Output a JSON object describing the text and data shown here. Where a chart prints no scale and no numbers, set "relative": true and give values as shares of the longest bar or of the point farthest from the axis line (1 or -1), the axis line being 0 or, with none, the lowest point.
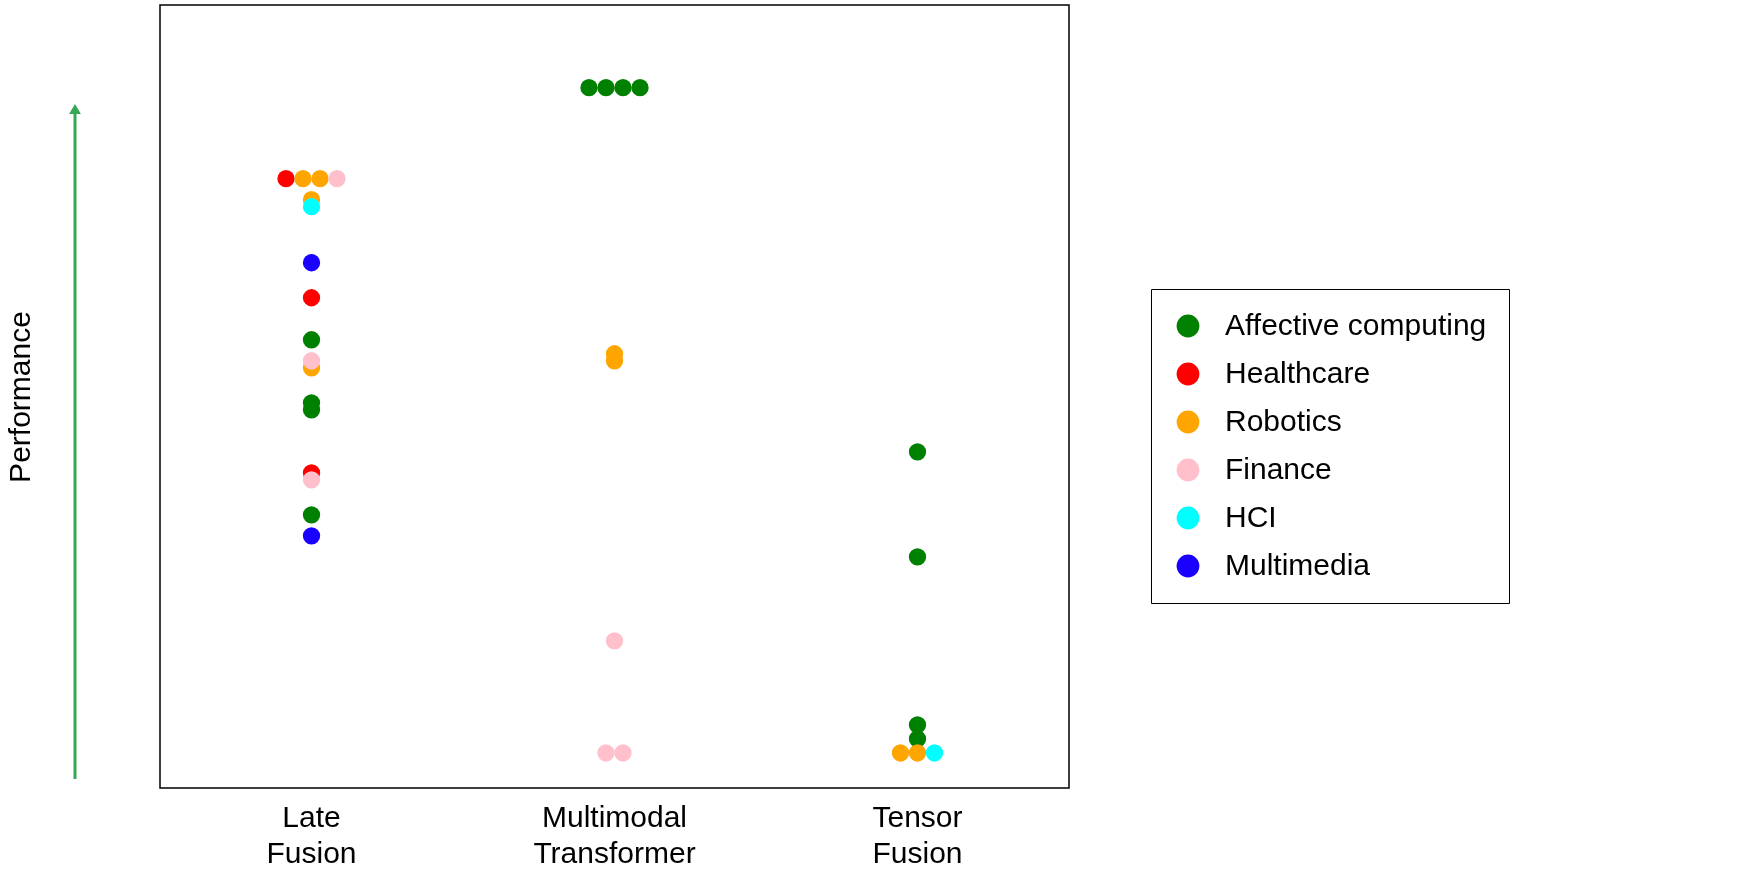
{
  "chart_data": {
    "type": "scatter",
    "ylabel": "Performance",
    "relative": true,
    "legend": "right",
    "marker": "circle",
    "grid": false,
    "categories": [
      "Late Fusion",
      "Multimodal Transformer",
      "Tensor Fusion"
    ],
    "series": [
      {
        "name": "Affective computing",
        "color": "#008000",
        "x": [
          "Late Fusion",
          "Late Fusion",
          "Late Fusion",
          "Late Fusion",
          "Multimodal Transformer",
          "Multimodal Transformer",
          "Multimodal Transformer",
          "Multimodal Transformer",
          "Tensor Fusion",
          "Tensor Fusion",
          "Tensor Fusion",
          "Tensor Fusion"
        ],
        "values": [
          0.64,
          0.55,
          0.54,
          0.39,
          1,
          1,
          1,
          1,
          0.48,
          0.33,
          0.09,
          0.07
        ]
      },
      {
        "name": "Healthcare",
        "color": "#ff0000",
        "x": [
          "Late Fusion",
          "Late Fusion",
          "Late Fusion"
        ],
        "values": [
          0.87,
          0.7,
          0.45
        ]
      },
      {
        "name": "Robotics",
        "color": "#ffa500",
        "x": [
          "Late Fusion",
          "Late Fusion",
          "Late Fusion",
          "Late Fusion",
          "Multimodal Transformer",
          "Multimodal Transformer",
          "Tensor Fusion",
          "Tensor Fusion"
        ],
        "values": [
          0.87,
          0.87,
          0.84,
          0.6,
          0.62,
          0.61,
          0.05,
          0.05
        ]
      },
      {
        "name": "Finance",
        "color": "#ffc0cb",
        "x": [
          "Late Fusion",
          "Late Fusion",
          "Late Fusion",
          "Multimodal Transformer",
          "Multimodal Transformer",
          "Multimodal Transformer"
        ],
        "values": [
          0.87,
          0.61,
          0.44,
          0.21,
          0.05,
          0.05
        ]
      },
      {
        "name": "HCI",
        "color": "#00ffff",
        "x": [
          "Late Fusion",
          "Tensor Fusion"
        ],
        "values": [
          0.83,
          0.05
        ]
      },
      {
        "name": "Multimedia",
        "color": "#1a00ff",
        "x": [
          "Late Fusion",
          "Late Fusion"
        ],
        "values": [
          0.75,
          0.36
        ]
      }
    ]
  }
}
